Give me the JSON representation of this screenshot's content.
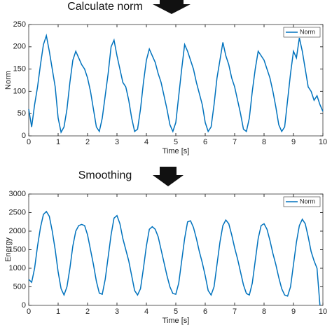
{
  "chart_data": [
    {
      "type": "line",
      "title": "Calculate norm",
      "xlabel": "Time [s]",
      "ylabel": "Norm",
      "x": [
        0,
        0.1,
        0.2,
        0.3,
        0.4,
        0.5,
        0.6,
        0.7,
        0.8,
        0.9,
        1,
        1.1,
        1.2,
        1.3,
        1.4,
        1.5,
        1.6,
        1.7,
        1.8,
        1.9,
        2,
        2.1,
        2.2,
        2.3,
        2.4,
        2.5,
        2.6,
        2.7,
        2.8,
        2.9,
        3,
        3.1,
        3.2,
        3.3,
        3.4,
        3.5,
        3.6,
        3.7,
        3.8,
        3.9,
        4,
        4.1,
        4.2,
        4.3,
        4.4,
        4.5,
        4.6,
        4.7,
        4.8,
        4.9,
        5,
        5.1,
        5.2,
        5.3,
        5.4,
        5.5,
        5.6,
        5.7,
        5.8,
        5.9,
        6,
        6.1,
        6.2,
        6.3,
        6.4,
        6.5,
        6.6,
        6.7,
        6.8,
        6.9,
        7,
        7.1,
        7.2,
        7.3,
        7.4,
        7.5,
        7.6,
        7.7,
        7.8,
        7.9,
        8,
        8.1,
        8.2,
        8.3,
        8.4,
        8.5,
        8.6,
        8.7,
        8.8,
        8.9,
        9,
        9.1,
        9.2,
        9.3,
        9.4,
        9.5,
        9.6,
        9.7,
        9.8,
        9.9,
        10
      ],
      "series": [
        {
          "name": "Norm",
          "color": "#0072bd",
          "values": [
            60,
            20,
            70,
            110,
            160,
            205,
            225,
            190,
            150,
            110,
            40,
            8,
            20,
            60,
            120,
            170,
            190,
            175,
            160,
            150,
            130,
            100,
            60,
            20,
            10,
            40,
            90,
            140,
            200,
            215,
            180,
            150,
            120,
            110,
            80,
            40,
            10,
            15,
            60,
            120,
            170,
            195,
            180,
            165,
            140,
            120,
            90,
            60,
            25,
            10,
            30,
            90,
            150,
            205,
            190,
            170,
            150,
            120,
            95,
            70,
            30,
            10,
            20,
            70,
            130,
            170,
            210,
            180,
            160,
            130,
            110,
            80,
            50,
            15,
            10,
            40,
            100,
            150,
            190,
            180,
            170,
            150,
            130,
            100,
            65,
            25,
            10,
            20,
            80,
            140,
            190,
            175,
            220,
            190,
            150,
            110,
            100,
            80,
            90,
            70,
            55
          ]
        }
      ],
      "xlim": [
        0,
        10
      ],
      "ylim": [
        0,
        250
      ],
      "xticks": [
        0,
        1,
        2,
        3,
        4,
        5,
        6,
        7,
        8,
        9,
        10
      ],
      "yticks": [
        0,
        50,
        100,
        150,
        200,
        250
      ],
      "legend": "upper right"
    },
    {
      "type": "line",
      "title": "Smoothing",
      "xlabel": "Time [s]",
      "ylabel": "Energy",
      "x": [
        0,
        0.1,
        0.2,
        0.3,
        0.4,
        0.5,
        0.6,
        0.7,
        0.8,
        0.9,
        1,
        1.1,
        1.2,
        1.3,
        1.4,
        1.5,
        1.6,
        1.7,
        1.8,
        1.9,
        2,
        2.1,
        2.2,
        2.3,
        2.4,
        2.5,
        2.6,
        2.7,
        2.8,
        2.9,
        3,
        3.1,
        3.2,
        3.3,
        3.4,
        3.5,
        3.6,
        3.7,
        3.8,
        3.9,
        4,
        4.1,
        4.2,
        4.3,
        4.4,
        4.5,
        4.6,
        4.7,
        4.8,
        4.9,
        5,
        5.1,
        5.2,
        5.3,
        5.4,
        5.5,
        5.6,
        5.7,
        5.8,
        5.9,
        6,
        6.1,
        6.2,
        6.3,
        6.4,
        6.5,
        6.6,
        6.7,
        6.8,
        6.9,
        7,
        7.1,
        7.2,
        7.3,
        7.4,
        7.5,
        7.6,
        7.7,
        7.8,
        7.9,
        8,
        8.1,
        8.2,
        8.3,
        8.4,
        8.5,
        8.6,
        8.7,
        8.8,
        8.9,
        9,
        9.1,
        9.2,
        9.3,
        9.4,
        9.5,
        9.6,
        9.7,
        9.8,
        9.9,
        10
      ],
      "series": [
        {
          "name": "Norm",
          "color": "#0072bd",
          "values": [
            700,
            620,
            1000,
            1600,
            2100,
            2450,
            2530,
            2400,
            2000,
            1500,
            900,
            450,
            280,
            500,
            1000,
            1600,
            2000,
            2150,
            2180,
            2150,
            1900,
            1500,
            1100,
            650,
            330,
            300,
            700,
            1300,
            1900,
            2350,
            2420,
            2200,
            1800,
            1500,
            1200,
            800,
            400,
            280,
            450,
            1000,
            1600,
            2050,
            2120,
            2050,
            1850,
            1500,
            1150,
            800,
            500,
            320,
            300,
            600,
            1200,
            1800,
            2250,
            2280,
            2100,
            1800,
            1450,
            1150,
            800,
            400,
            280,
            500,
            1100,
            1700,
            2150,
            2300,
            2200,
            1900,
            1550,
            1250,
            900,
            550,
            320,
            280,
            600,
            1200,
            1800,
            2150,
            2200,
            2050,
            1750,
            1400,
            1100,
            750,
            450,
            280,
            250,
            500,
            1100,
            1700,
            2150,
            2320,
            2200,
            1850,
            1450,
            1200,
            1000,
            0,
            null
          ]
        }
      ],
      "xlim": [
        0,
        10
      ],
      "ylim": [
        0,
        3000
      ],
      "xticks": [
        0,
        1,
        2,
        3,
        4,
        5,
        6,
        7,
        8,
        9,
        10
      ],
      "yticks": [
        0,
        500,
        1000,
        1500,
        2000,
        2500,
        3000
      ],
      "legend": "upper right"
    }
  ]
}
